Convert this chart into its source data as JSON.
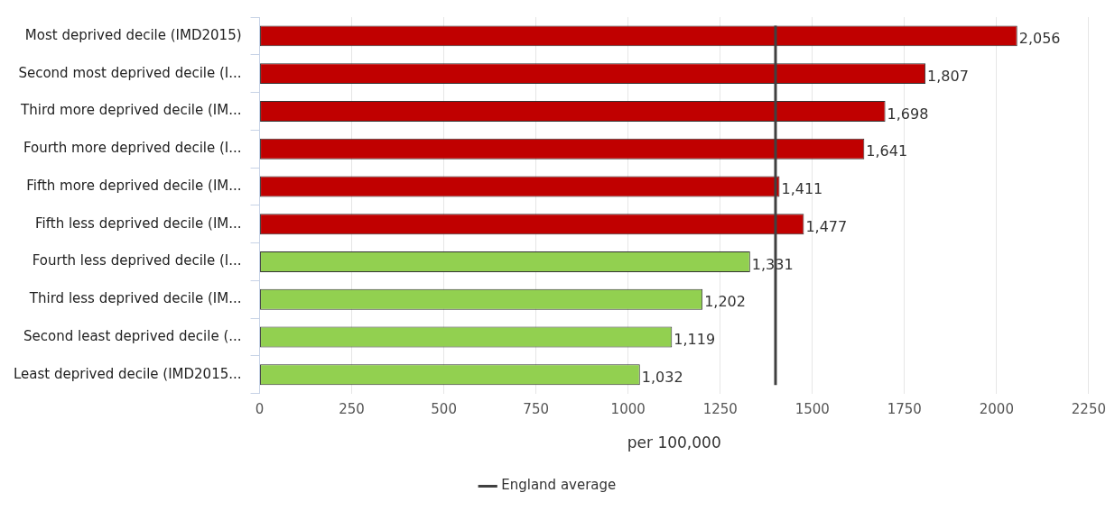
{
  "chart_data": {
    "type": "bar",
    "orientation": "horizontal",
    "xlabel": "per 100,000",
    "categories": [
      "Most deprived decile (IMD2015)",
      "Second most deprived decile (I...",
      "Third more deprived decile (IM...",
      "Fourth more deprived decile (I...",
      "Fifth more deprived decile (IM...",
      "Fifth less deprived decile (IM...",
      "Fourth less deprived decile (I...",
      "Third less deprived decile (IM...",
      "Second least deprived decile (...",
      "Least deprived decile (IMD2015..."
    ],
    "values": [
      2056,
      1807,
      1698,
      1641,
      1411,
      1477,
      1331,
      1202,
      1119,
      1032
    ],
    "value_labels": [
      "2,056",
      "1,807",
      "1,698",
      "1,641",
      "1,411",
      "1,477",
      "1,331",
      "1,202",
      "1,119",
      "1,032"
    ],
    "colors": [
      "#c00000",
      "#c00000",
      "#c00000",
      "#c00000",
      "#c00000",
      "#c00000",
      "#92d050",
      "#92d050",
      "#92d050",
      "#92d050"
    ],
    "xlim": [
      0,
      2250
    ],
    "xticks": [
      0,
      250,
      500,
      750,
      1000,
      1250,
      1500,
      1750,
      2000,
      2250
    ],
    "grid": "x",
    "legend": "bottom",
    "ref_lines": [
      {
        "axis": "x",
        "value": 1400,
        "label": "England average",
        "color": "#404040"
      }
    ]
  }
}
